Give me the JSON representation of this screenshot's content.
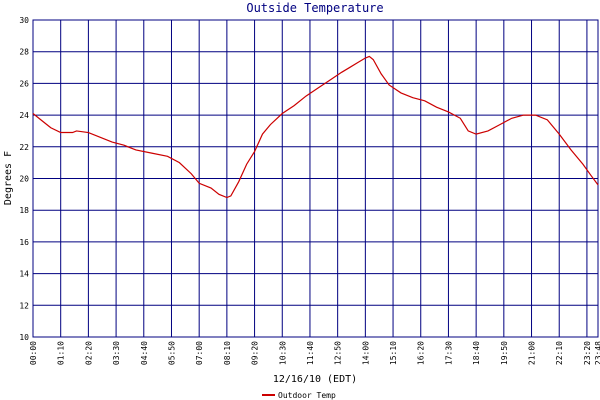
{
  "chart_data": {
    "type": "line",
    "title": "Outside Temperature",
    "x_label": "12/16/10 (EDT)",
    "y_label": "Degrees F",
    "x": [
      0,
      20,
      45,
      70,
      100,
      110,
      140,
      170,
      200,
      230,
      260,
      300,
      340,
      370,
      400,
      420,
      450,
      470,
      490,
      500,
      520,
      540,
      560,
      580,
      600,
      630,
      660,
      690,
      720,
      750,
      780,
      800,
      820,
      840,
      850,
      860,
      880,
      900,
      930,
      960,
      990,
      1020,
      1050,
      1080,
      1100,
      1120,
      1150,
      1180,
      1210,
      1240,
      1270,
      1300,
      1330,
      1360,
      1390,
      1410,
      1428
    ],
    "series": [
      {
        "name": "Outdoor Temp",
        "color": "#cc0000",
        "values": [
          24.1,
          23.7,
          23.2,
          22.9,
          22.9,
          23.0,
          22.9,
          22.6,
          22.3,
          22.1,
          21.8,
          21.6,
          21.4,
          21.0,
          20.3,
          19.7,
          19.4,
          19.0,
          18.8,
          18.9,
          19.8,
          20.9,
          21.7,
          22.8,
          23.4,
          24.1,
          24.6,
          25.2,
          25.7,
          26.2,
          26.7,
          27.0,
          27.3,
          27.6,
          27.7,
          27.5,
          26.6,
          25.9,
          25.4,
          25.1,
          24.9,
          24.5,
          24.2,
          23.8,
          23.0,
          22.8,
          23.0,
          23.4,
          23.8,
          24.0,
          24.0,
          23.7,
          22.8,
          21.8,
          20.9,
          20.2,
          19.6
        ]
      }
    ],
    "xlim": [
      0,
      1428
    ],
    "xticks": [
      {
        "value": 0,
        "label": "00:00"
      },
      {
        "value": 70,
        "label": "01:10"
      },
      {
        "value": 140,
        "label": "02:20"
      },
      {
        "value": 210,
        "label": "03:30"
      },
      {
        "value": 280,
        "label": "04:40"
      },
      {
        "value": 350,
        "label": "05:50"
      },
      {
        "value": 420,
        "label": "07:00"
      },
      {
        "value": 490,
        "label": "08:10"
      },
      {
        "value": 560,
        "label": "09:20"
      },
      {
        "value": 630,
        "label": "10:30"
      },
      {
        "value": 700,
        "label": "11:40"
      },
      {
        "value": 770,
        "label": "12:50"
      },
      {
        "value": 840,
        "label": "14:00"
      },
      {
        "value": 910,
        "label": "15:10"
      },
      {
        "value": 980,
        "label": "16:20"
      },
      {
        "value": 1050,
        "label": "17:30"
      },
      {
        "value": 1120,
        "label": "18:40"
      },
      {
        "value": 1190,
        "label": "19:50"
      },
      {
        "value": 1260,
        "label": "21:00"
      },
      {
        "value": 1330,
        "label": "22:10"
      },
      {
        "value": 1400,
        "label": "23:20"
      },
      {
        "value": 1428,
        "label": "23:48"
      }
    ],
    "ylim": [
      10,
      30
    ],
    "yticks": [
      10,
      12,
      14,
      16,
      18,
      20,
      22,
      24,
      26,
      28,
      30
    ],
    "grid": true,
    "grid_color": "#000080"
  }
}
